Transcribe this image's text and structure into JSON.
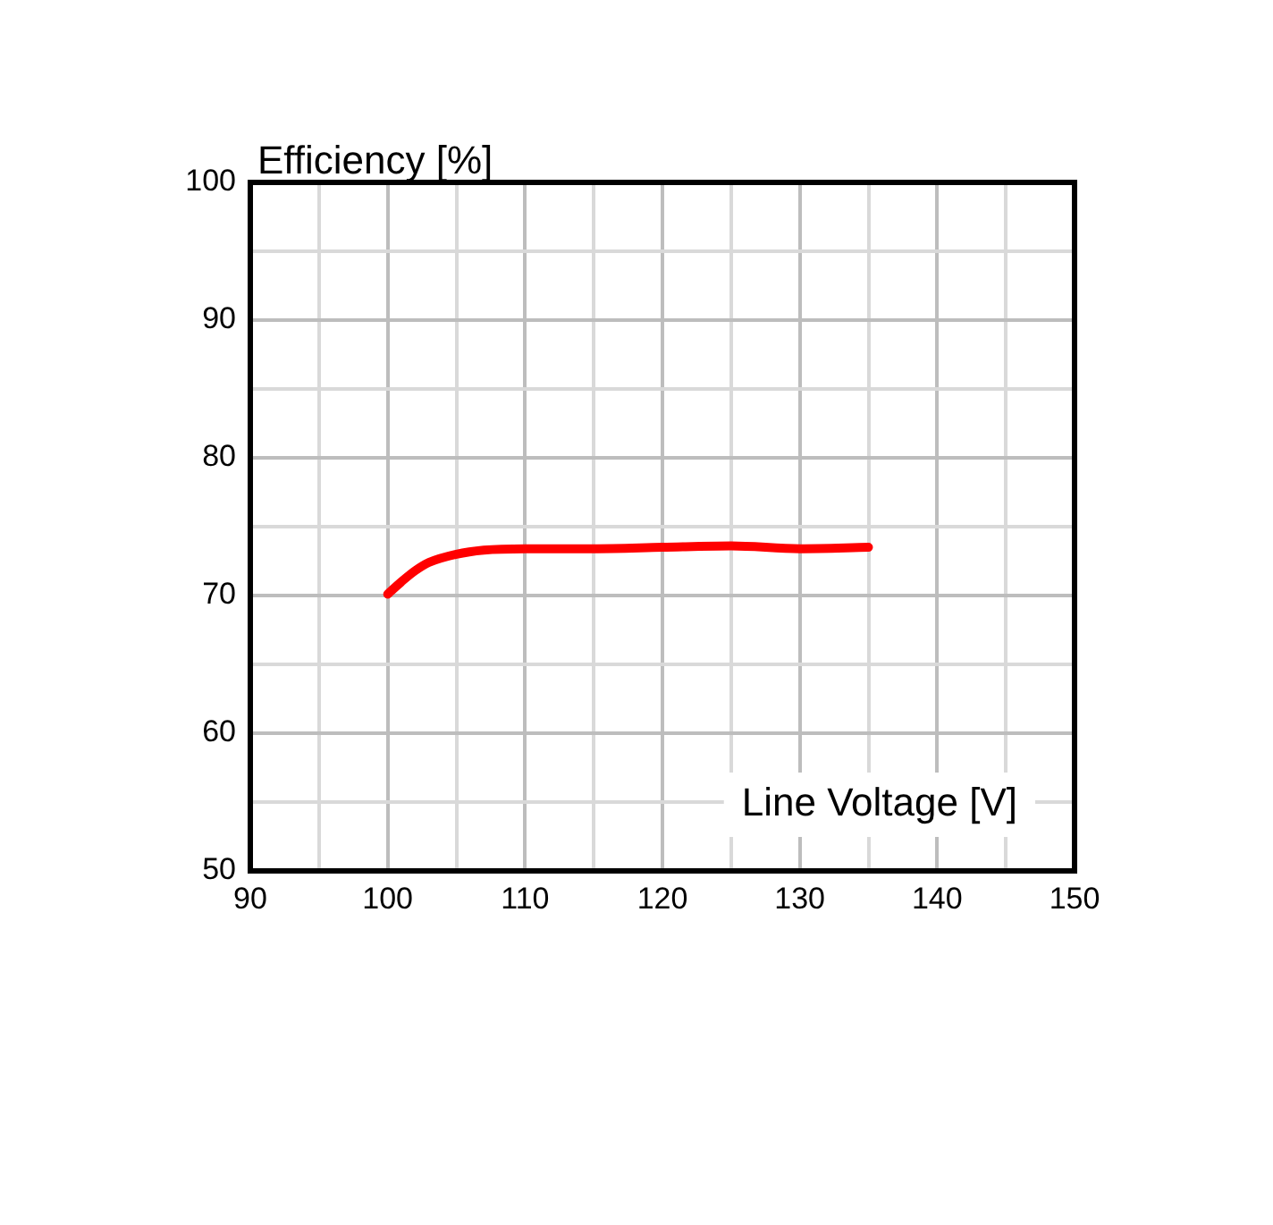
{
  "chart_data": {
    "type": "line",
    "xlabel": "Line Voltage [V]",
    "ylabel": "Efficiency [%]",
    "x": [
      100,
      101,
      102,
      103,
      105,
      107,
      110,
      115,
      120,
      125,
      130,
      135
    ],
    "series": [
      {
        "color": "#ff0000",
        "values": [
          70.1,
          71,
          71.8,
          72.4,
          73,
          73.3,
          73.4,
          73.4,
          73.5,
          73.6,
          73.4,
          73.5
        ]
      }
    ],
    "xlim": [
      90,
      150
    ],
    "xticks": [
      90,
      {
        "value": 95,
        "label": null
      },
      100,
      {
        "value": 105,
        "label": null
      },
      110,
      {
        "value": 115,
        "label": null
      },
      120,
      {
        "value": 125,
        "label": null
      },
      130,
      {
        "value": 135,
        "label": null
      },
      140,
      {
        "value": 145,
        "label": null
      },
      150
    ],
    "ylim": [
      50,
      100
    ],
    "yticks": [
      50,
      {
        "value": 55,
        "label": null
      },
      60,
      {
        "value": 65,
        "label": null
      },
      70,
      {
        "value": 75,
        "label": null
      },
      80,
      {
        "value": 85,
        "label": null
      },
      90,
      {
        "value": 95,
        "label": null
      },
      100
    ],
    "grid": true,
    "legend": false,
    "marker": "none",
    "line_style": "solid"
  }
}
